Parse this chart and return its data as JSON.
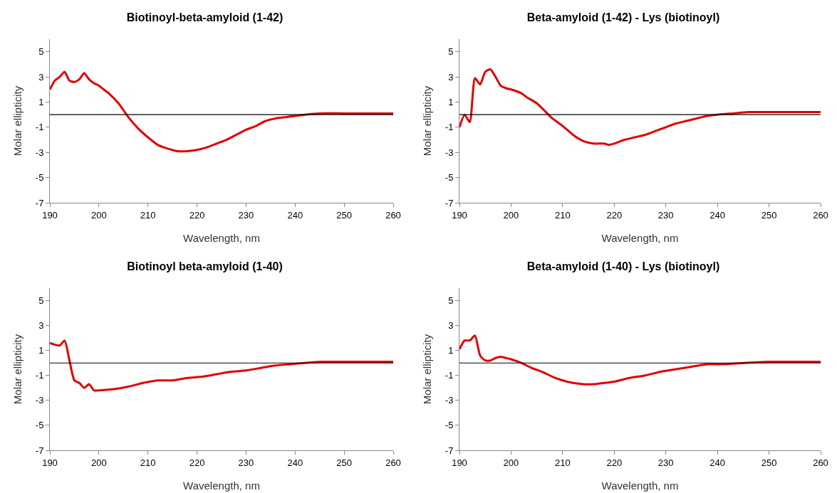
{
  "chart_data": [
    {
      "type": "line",
      "title": "Biotinoyl-beta-amyloid (1-42)",
      "xlabel": "Wavelength, nm",
      "ylabel": "Molar ellipticity",
      "xlim": [
        190,
        260
      ],
      "xticks": [
        190,
        200,
        210,
        220,
        230,
        240,
        250,
        260
      ],
      "ylim": [
        -7,
        6
      ],
      "yticks": [
        -7,
        -5,
        -3,
        -1,
        1,
        3,
        5
      ],
      "marker": "none",
      "line_style": "solid",
      "ref_lines": [
        {
          "axis": "y",
          "value": 0,
          "color": "#000000"
        }
      ],
      "series": [
        {
          "color": "#e00000",
          "x": [
            190,
            191,
            192,
            193,
            194,
            195,
            196,
            197,
            198,
            199,
            200,
            201,
            202,
            204,
            206,
            208,
            210,
            212,
            214,
            216,
            218,
            220,
            222,
            224,
            226,
            228,
            230,
            232,
            234,
            236,
            238,
            240,
            242,
            245,
            250,
            255,
            260
          ],
          "values": [
            2.0,
            2.7,
            3.0,
            3.4,
            2.7,
            2.6,
            2.8,
            3.3,
            2.8,
            2.5,
            2.3,
            2.0,
            1.7,
            0.9,
            -0.2,
            -1.1,
            -1.8,
            -2.4,
            -2.7,
            -2.9,
            -2.9,
            -2.8,
            -2.6,
            -2.3,
            -2.0,
            -1.6,
            -1.2,
            -0.9,
            -0.5,
            -0.3,
            -0.2,
            -0.1,
            0.0,
            0.1,
            0.1,
            0.1,
            0.1
          ]
        }
      ]
    },
    {
      "type": "line",
      "title": "Beta-amyloid (1-42) - Lys (biotinoyl)",
      "xlabel": "Wavelength, nm",
      "ylabel": "Molar ellipticity",
      "xlim": [
        190,
        260
      ],
      "xticks": [
        190,
        200,
        210,
        220,
        230,
        240,
        250,
        260
      ],
      "ylim": [
        -7,
        6
      ],
      "yticks": [
        -7,
        -5,
        -3,
        -1,
        1,
        3,
        5
      ],
      "marker": "none",
      "line_style": "solid",
      "ref_lines": [
        {
          "axis": "y",
          "value": 0,
          "color": "#000000"
        }
      ],
      "series": [
        {
          "color": "#e00000",
          "x": [
            190,
            191,
            192,
            193,
            194,
            195,
            196,
            197,
            198,
            199,
            200,
            202,
            203,
            205,
            207,
            208,
            210,
            212,
            214,
            216,
            218,
            219,
            220,
            222,
            224,
            226,
            228,
            230,
            232,
            234,
            236,
            238,
            240,
            243,
            246,
            250,
            255,
            260
          ],
          "values": [
            -1.0,
            0.0,
            -0.6,
            2.9,
            2.4,
            3.4,
            3.6,
            3.0,
            2.3,
            2.1,
            2.0,
            1.7,
            1.4,
            0.9,
            0.1,
            -0.3,
            -0.9,
            -1.6,
            -2.1,
            -2.3,
            -2.3,
            -2.4,
            -2.3,
            -2.0,
            -1.8,
            -1.6,
            -1.3,
            -1.0,
            -0.7,
            -0.5,
            -0.3,
            -0.1,
            0.0,
            0.1,
            0.2,
            0.2,
            0.2,
            0.2
          ]
        }
      ]
    },
    {
      "type": "line",
      "title": "Biotinoyl beta-amyloid (1-40)",
      "xlabel": "Wavelength, nm",
      "ylabel": "Molar ellipticity",
      "xlim": [
        190,
        260
      ],
      "xticks": [
        190,
        200,
        210,
        220,
        230,
        240,
        250,
        260
      ],
      "ylim": [
        -7,
        6
      ],
      "yticks": [
        -7,
        -5,
        -3,
        -1,
        1,
        3,
        5
      ],
      "marker": "none",
      "line_style": "solid",
      "ref_lines": [
        {
          "axis": "y",
          "value": 0,
          "color": "#000000"
        }
      ],
      "series": [
        {
          "color": "#e00000",
          "x": [
            190,
            192,
            193,
            194,
            195,
            196,
            197,
            198,
            199,
            200,
            203,
            206,
            209,
            212,
            215,
            218,
            221,
            224,
            227,
            230,
            233,
            236,
            239,
            242,
            245,
            250,
            255,
            260
          ],
          "values": [
            1.6,
            1.4,
            1.8,
            0.2,
            -1.4,
            -1.6,
            -2.0,
            -1.7,
            -2.2,
            -2.2,
            -2.1,
            -1.9,
            -1.6,
            -1.4,
            -1.4,
            -1.2,
            -1.1,
            -0.9,
            -0.7,
            -0.6,
            -0.4,
            -0.2,
            -0.1,
            0.0,
            0.1,
            0.1,
            0.1,
            0.1
          ]
        }
      ]
    },
    {
      "type": "line",
      "title": "Beta-amyloid (1-40) - Lys (biotinoyl)",
      "xlabel": "Wavelength, nm",
      "ylabel": "Molar ellipticity",
      "xlim": [
        190,
        260
      ],
      "xticks": [
        190,
        200,
        210,
        220,
        230,
        240,
        250,
        260
      ],
      "ylim": [
        -7,
        6
      ],
      "yticks": [
        -7,
        -5,
        -3,
        -1,
        1,
        3,
        5
      ],
      "marker": "none",
      "line_style": "solid",
      "ref_lines": [
        {
          "axis": "y",
          "value": 0,
          "color": "#000000"
        }
      ],
      "series": [
        {
          "color": "#e00000",
          "x": [
            190,
            191,
            192,
            193,
            194,
            195,
            196,
            197,
            198,
            199,
            200,
            202,
            204,
            206,
            208,
            210,
            212,
            214,
            216,
            218,
            220,
            223,
            226,
            229,
            232,
            235,
            238,
            241,
            245,
            250,
            255,
            260
          ],
          "values": [
            1.1,
            1.8,
            1.8,
            2.2,
            0.6,
            0.2,
            0.2,
            0.4,
            0.5,
            0.4,
            0.3,
            0.0,
            -0.4,
            -0.7,
            -1.1,
            -1.4,
            -1.6,
            -1.7,
            -1.7,
            -1.6,
            -1.5,
            -1.2,
            -1.0,
            -0.7,
            -0.5,
            -0.3,
            -0.1,
            -0.1,
            0.0,
            0.1,
            0.1,
            0.1
          ]
        }
      ]
    }
  ]
}
